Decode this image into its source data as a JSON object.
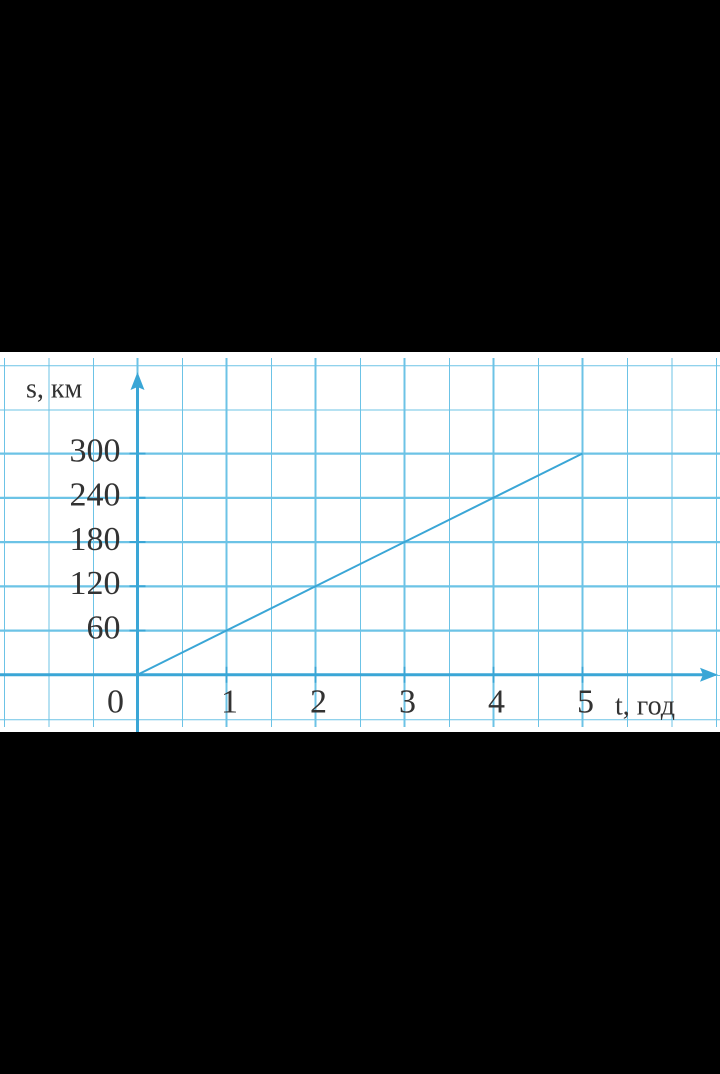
{
  "chart_data": {
    "type": "line",
    "x_label": "t, год",
    "y_label": "s, км",
    "x": [
      0,
      5
    ],
    "series": [
      {
        "color": "#3aa6d6",
        "values": [
          0,
          300
        ]
      }
    ],
    "xlim": [
      -1.5,
      6.5
    ],
    "ylim": [
      -60,
      420
    ],
    "xticks": [
      0,
      1,
      2,
      3,
      4,
      5
    ],
    "yticks": [
      60,
      120,
      180,
      240,
      300
    ],
    "grid": true,
    "grid_color": "#6cc3e6",
    "axis_color": "#3aa6d6"
  }
}
